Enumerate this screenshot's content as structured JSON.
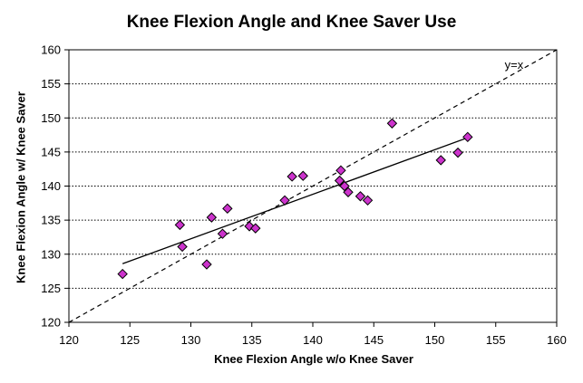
{
  "chart_data": {
    "type": "scatter",
    "title": "Knee Flexion Angle and Knee Saver Use",
    "xlabel": "Knee Flexion Angle w/o Knee Saver",
    "ylabel": "Knee Flexion Angle w/ Knee Saver",
    "xlim": [
      120,
      160
    ],
    "ylim": [
      120,
      160
    ],
    "xticks": [
      120,
      125,
      130,
      135,
      140,
      145,
      150,
      155,
      160
    ],
    "yticks": [
      120,
      125,
      130,
      135,
      140,
      145,
      150,
      155,
      160
    ],
    "grid": "horizontal-dotted",
    "marker_color": "#cc33cc",
    "points": [
      {
        "x": 124.4,
        "y": 127.1
      },
      {
        "x": 129.1,
        "y": 134.3
      },
      {
        "x": 129.3,
        "y": 131.1
      },
      {
        "x": 131.3,
        "y": 128.5
      },
      {
        "x": 131.7,
        "y": 135.4
      },
      {
        "x": 132.6,
        "y": 133.0
      },
      {
        "x": 133.0,
        "y": 136.7
      },
      {
        "x": 134.8,
        "y": 134.1
      },
      {
        "x": 135.3,
        "y": 133.8
      },
      {
        "x": 137.7,
        "y": 137.9
      },
      {
        "x": 138.3,
        "y": 141.4
      },
      {
        "x": 139.2,
        "y": 141.5
      },
      {
        "x": 142.2,
        "y": 140.8
      },
      {
        "x": 142.3,
        "y": 142.3
      },
      {
        "x": 142.6,
        "y": 140.0
      },
      {
        "x": 142.9,
        "y": 139.1
      },
      {
        "x": 143.9,
        "y": 138.5
      },
      {
        "x": 144.5,
        "y": 137.9
      },
      {
        "x": 146.5,
        "y": 149.2
      },
      {
        "x": 150.5,
        "y": 143.8
      },
      {
        "x": 151.9,
        "y": 144.9
      },
      {
        "x": 152.7,
        "y": 147.2
      }
    ],
    "trendline": {
      "x": [
        124.4,
        152.7
      ],
      "y": [
        128.6,
        147.1
      ]
    },
    "reference_line": {
      "label": "y=x",
      "x": [
        120,
        160
      ],
      "y": [
        120,
        160
      ]
    }
  }
}
